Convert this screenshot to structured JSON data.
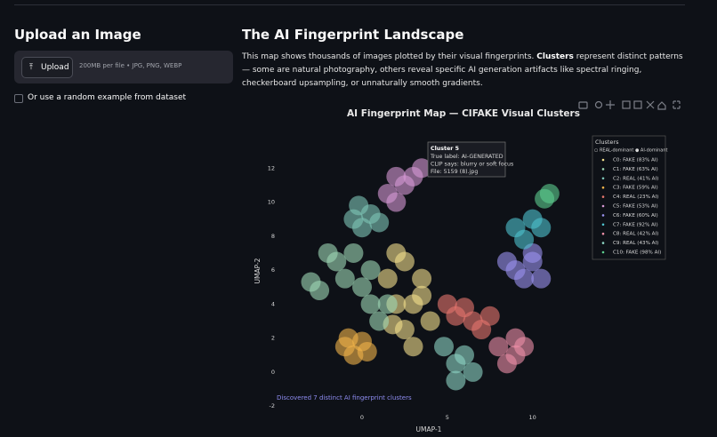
{
  "page": {
    "upload_title": "Upload an Image",
    "upload_button": "Upload",
    "upload_hint": "200MB per file • JPG, PNG, WEBP",
    "checkbox_label": "Or use a random example from dataset",
    "section_title": "The AI Fingerprint Landscape",
    "description": [
      "This map shows thousands of images plotted by their visual fingerprints. ",
      "Clusters",
      " represent distinct patterns — some are natural photography, others reveal specific AI generation artifacts like spectral ringing, checkerboard upsampling, or unnaturally smooth gradients."
    ]
  },
  "chart_data": {
    "type": "scatter",
    "title": "AI Fingerprint Map — CIFAKE Visual Clusters",
    "xlabel": "UMAP-1",
    "ylabel": "UMAP-2",
    "xlim": [
      -4.8,
      13.2
    ],
    "ylim": [
      -2.2,
      14
    ],
    "xticks": [
      0,
      5,
      10
    ],
    "yticks": [
      -2,
      0,
      2,
      4,
      6,
      8,
      10,
      12
    ],
    "legend_title": "Clusters",
    "legend_note": "○ REAL-dominant  ● AI-dominant",
    "annotation": "Discovered 7 distinct AI fingerprint clusters",
    "hover_text": [
      "Cluster 5",
      "True label: AI-GENERATED",
      "CLIP says: blurry or soft focus",
      "File: 5159 (8).jpg"
    ],
    "series": [
      {
        "name": "C0: FAKE (83% AI)",
        "color": "#f3df8c",
        "x": [
          1.5,
          2.5,
          3.5,
          2,
          3,
          4,
          2.5,
          3,
          1.8,
          3.5,
          2
        ],
        "y": [
          5.5,
          6.5,
          5.5,
          4,
          4,
          3,
          2.5,
          1.5,
          2.8,
          4.5,
          7
        ]
      },
      {
        "name": "C1: FAKE (63% AI)",
        "color": "#9fd8b5",
        "x": [
          -1.5,
          -0.5,
          -1,
          0,
          0.5,
          1,
          -2,
          0.5,
          1.5,
          -3,
          -2.5
        ],
        "y": [
          6.5,
          7,
          5.5,
          5,
          4,
          3,
          7,
          6,
          4,
          5.3,
          4.8
        ]
      },
      {
        "name": "C2: REAL (41% AI)",
        "color": "#7fc6b8",
        "x": [
          -0.5,
          0.5,
          0,
          1,
          -0.2
        ],
        "y": [
          9,
          9.3,
          8.5,
          8.8,
          9.8
        ]
      },
      {
        "name": "C3: FAKE (59% AI)",
        "color": "#f2b44a",
        "x": [
          -1,
          0,
          -0.5,
          0.3,
          -0.8
        ],
        "y": [
          1.5,
          1.8,
          1,
          1.2,
          2
        ]
      },
      {
        "name": "C4: REAL (23% AI)",
        "color": "#e8776e",
        "x": [
          5,
          5.5,
          6.5,
          7.5,
          6,
          7
        ],
        "y": [
          4,
          3.3,
          3,
          3.3,
          3.8,
          2.5
        ]
      },
      {
        "name": "C5: FAKE (53% AI)",
        "color": "#d79ad6",
        "x": [
          1.5,
          2,
          2.5,
          3,
          2,
          3.5
        ],
        "y": [
          10.5,
          11.5,
          11,
          11.5,
          10,
          12
        ]
      },
      {
        "name": "C6: FAKE (60% AI)",
        "color": "#9b93f0",
        "x": [
          9,
          10,
          9.5,
          8.5,
          10.5,
          10
        ],
        "y": [
          6,
          6.5,
          5.5,
          6.5,
          5.5,
          7
        ]
      },
      {
        "name": "C7: FAKE (92% AI)",
        "color": "#4fc3cf",
        "x": [
          9,
          10,
          10.5,
          9.5
        ],
        "y": [
          8.5,
          9,
          8.5,
          7.8
        ]
      },
      {
        "name": "C8: REAL (42% AI)",
        "color": "#ee8fa8",
        "x": [
          8,
          9,
          9,
          8.5,
          9.5
        ],
        "y": [
          1.5,
          1,
          2,
          0.5,
          1.5
        ]
      },
      {
        "name": "C9: REAL (43% AI)",
        "color": "#8ed6c4",
        "x": [
          5.5,
          6.5,
          5.5,
          6,
          4.8
        ],
        "y": [
          0.5,
          0,
          -0.5,
          1,
          1.5
        ]
      },
      {
        "name": "C10: FAKE (98% AI)",
        "color": "#5dcf8f",
        "x": [
          11,
          10.7
        ],
        "y": [
          10.5,
          10.2
        ]
      }
    ]
  }
}
